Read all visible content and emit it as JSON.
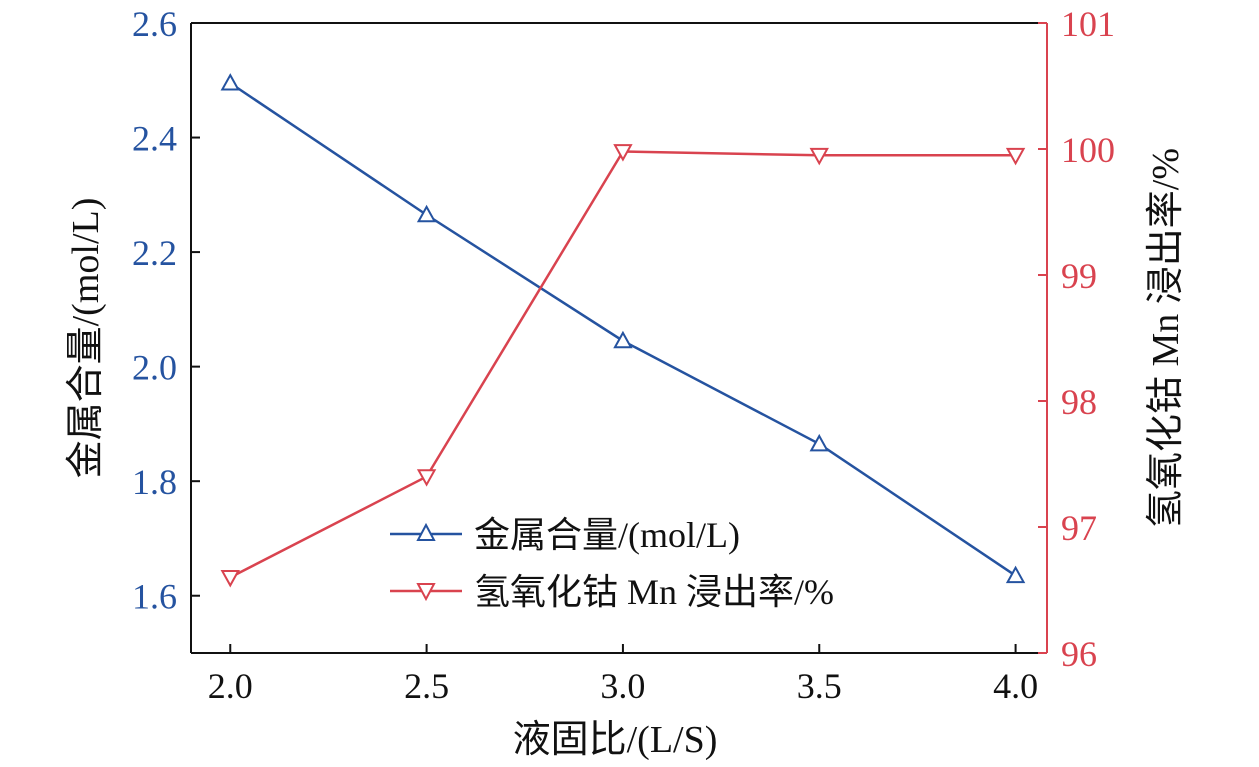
{
  "chart_data": {
    "type": "line",
    "xlabel": "液固比/(L/S)",
    "ylabel_left": "金属合量/(mol/L)",
    "ylabel_right": "氢氧化钴 Mn 浸出率/%",
    "x": [
      2.0,
      2.5,
      3.0,
      3.5,
      4.0
    ],
    "x_ticks": [
      "2.0",
      "2.5",
      "3.0",
      "3.5",
      "4.0"
    ],
    "xlim": [
      1.9,
      4.08
    ],
    "ylim_left": [
      1.5,
      2.6
    ],
    "ylim_right": [
      96,
      101
    ],
    "y_ticks_left": [
      "1.6",
      "1.8",
      "2.0",
      "2.2",
      "2.4",
      "2.6"
    ],
    "y_ticks_right": [
      "96",
      "97",
      "98",
      "99",
      "100",
      "101"
    ],
    "series": [
      {
        "name": "金属合量/(mol/L)",
        "axis": "left",
        "color": "#2553a0",
        "marker": "triangle-up",
        "values": [
          2.495,
          2.265,
          2.045,
          1.865,
          1.635
        ]
      },
      {
        "name": "氢氧化钴 Mn 浸出率/%",
        "axis": "right",
        "color": "#d9434f",
        "marker": "triangle-down",
        "values": [
          96.6,
          97.4,
          99.98,
          99.95,
          99.95
        ]
      }
    ],
    "grid": false,
    "legend_position": "lower-center"
  }
}
